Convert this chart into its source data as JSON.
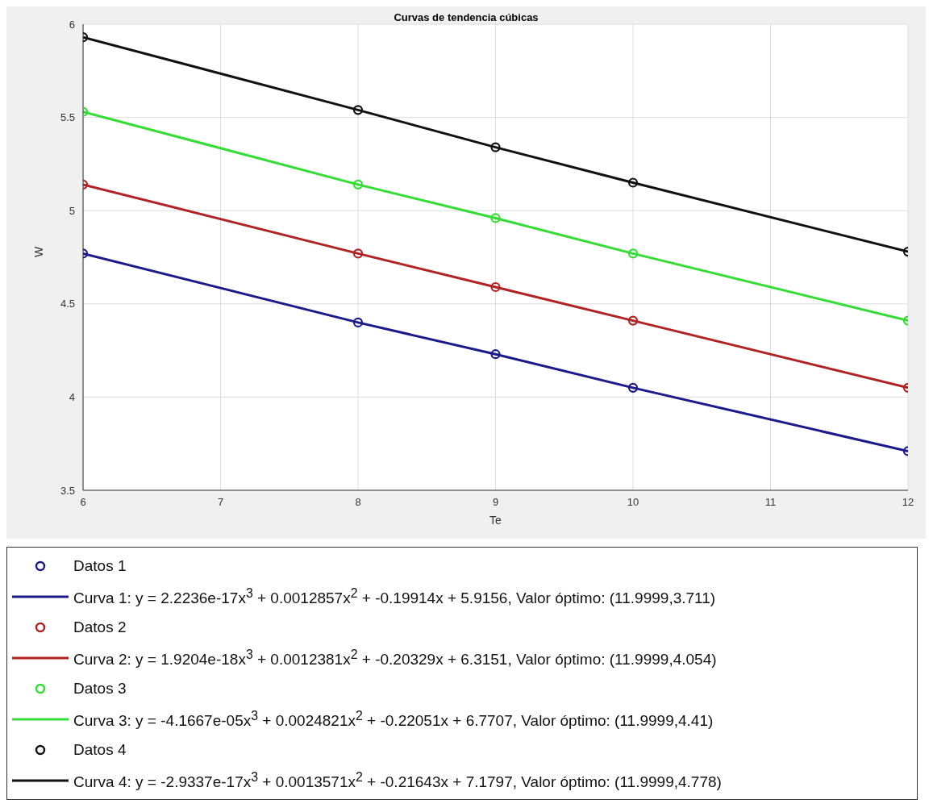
{
  "chart_data": {
    "type": "line",
    "title": "Curvas de tendencia cúbicas",
    "xlabel": "Te",
    "ylabel": "W",
    "xlim": [
      6,
      12
    ],
    "xticks": [
      6,
      7,
      8,
      9,
      10,
      11,
      12
    ],
    "ylim": [
      3.5,
      6
    ],
    "yticks": [
      3.5,
      4,
      4.5,
      5,
      5.5,
      6
    ],
    "grid": true,
    "legend": "bottom",
    "x": [
      6,
      8,
      9,
      10,
      12
    ],
    "series": [
      {
        "name": "Datos 1",
        "type": "scatter",
        "marker": "circle",
        "color": "#1a1a8c",
        "values": [
          4.77,
          4.4,
          4.23,
          4.05,
          3.71
        ]
      },
      {
        "name": "Curva 1: y = 2.2236e-17x$^{3}$ + 0.0012857x$^{2}$ + -0.19914x + 5.9156, Valor óptimo: (11.9999,3.711)",
        "type": "line",
        "marker": "none",
        "color": "#1a1a8c",
        "values": [
          4.77,
          4.4,
          4.23,
          4.05,
          3.71
        ]
      },
      {
        "name": "Datos 2",
        "type": "scatter",
        "marker": "circle",
        "color": "#b22222",
        "values": [
          5.14,
          4.77,
          4.59,
          4.41,
          4.05
        ]
      },
      {
        "name": "Curva 2: y = 1.9204e-18x$^{3}$ + 0.0012381x$^{2}$ + -0.20329x + 6.3151, Valor óptimo: (11.9999,4.054)",
        "type": "line",
        "marker": "none",
        "color": "#b22222",
        "values": [
          5.14,
          4.77,
          4.59,
          4.41,
          4.05
        ]
      },
      {
        "name": "Datos 3",
        "type": "scatter",
        "marker": "circle",
        "color": "#33dd33",
        "values": [
          5.53,
          5.14,
          4.96,
          4.77,
          4.41
        ]
      },
      {
        "name": "Curva 3: y = -4.1667e-05x$^{3}$ + 0.0024821x$^{2}$ + -0.22051x + 6.7707, Valor óptimo: (11.9999,4.41)",
        "type": "line",
        "marker": "none",
        "color": "#33dd33",
        "values": [
          5.53,
          5.14,
          4.96,
          4.77,
          4.41
        ]
      },
      {
        "name": "Datos 4",
        "type": "scatter",
        "marker": "circle",
        "color": "#111111",
        "values": [
          5.93,
          5.54,
          5.34,
          5.15,
          4.78
        ]
      },
      {
        "name": "Curva 4: y = -2.9337e-17x$^{3}$ + 0.0013571x$^{2}$ + -0.21643x + 7.1797, Valor óptimo: (11.9999,4.778)",
        "type": "line",
        "marker": "none",
        "color": "#111111",
        "values": [
          5.93,
          5.54,
          5.34,
          5.15,
          4.78
        ]
      }
    ]
  }
}
